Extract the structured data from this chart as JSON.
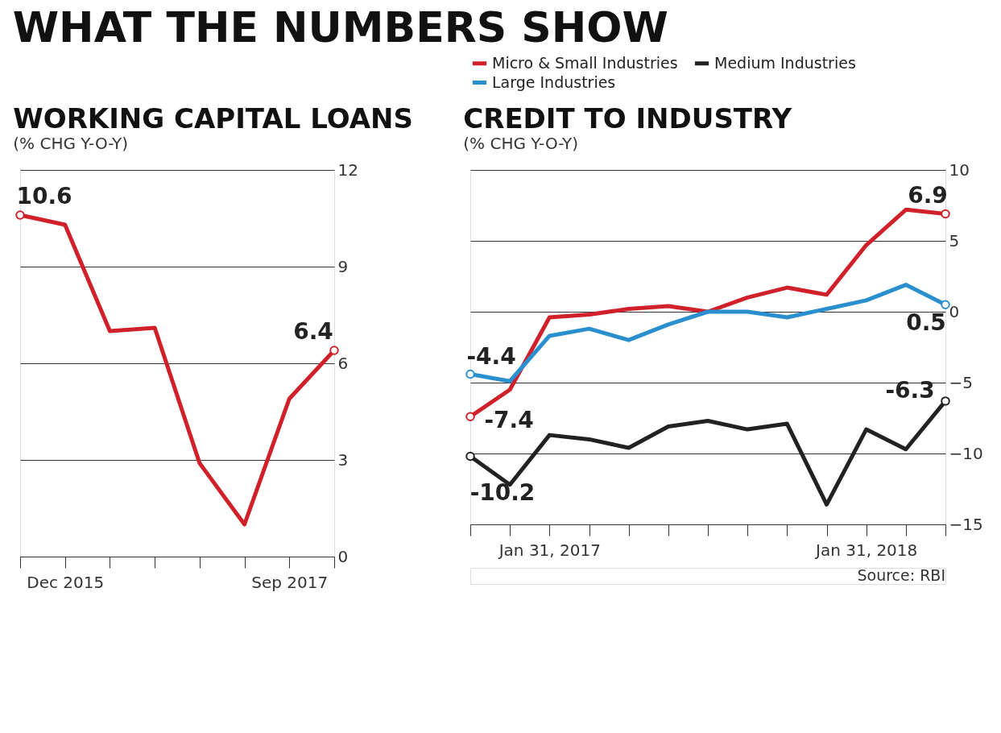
{
  "chart_data": [
    {
      "type": "line",
      "title": "WORKING CAPITAL LOANS",
      "subtitle": "(% CHG Y-O-Y)",
      "annotations": [
        "WHAT THE NUMBERS SHOW"
      ],
      "categories": [
        null,
        "Dec 2015",
        null,
        null,
        null,
        null,
        "Sep 2017",
        null
      ],
      "series": [
        {
          "color": "#d0202a",
          "values": [
            10.6,
            10.3,
            7.0,
            7.1,
            2.9,
            1.0,
            4.9,
            6.4
          ],
          "value_labels": [
            "10.6",
            null,
            null,
            null,
            null,
            null,
            null,
            "6.4"
          ]
        }
      ],
      "ylim": [
        0,
        12
      ],
      "yticks": [
        0,
        3,
        6,
        9,
        12
      ],
      "grid": "y"
    },
    {
      "type": "line",
      "title": "CREDIT TO INDUSTRY",
      "subtitle": "(% CHG Y-O-Y)",
      "annotations": [
        "Source: RBI"
      ],
      "categories": [
        null,
        null,
        "Jan 31, 2017",
        null,
        null,
        null,
        null,
        null,
        null,
        null,
        "Jan 31, 2018",
        null,
        null
      ],
      "series": [
        {
          "name": "Micro & Small Industries",
          "color": "#d0202a",
          "values": [
            -7.4,
            -5.5,
            -0.4,
            -0.2,
            0.2,
            0.4,
            0.0,
            1.0,
            1.7,
            1.2,
            4.7,
            7.2,
            6.9
          ],
          "value_labels": [
            "-7.4",
            null,
            null,
            null,
            null,
            null,
            null,
            null,
            null,
            null,
            null,
            null,
            "6.9"
          ]
        },
        {
          "name": "Medium Industries",
          "color": "#222222",
          "values": [
            -10.2,
            -12.2,
            -8.7,
            -9.0,
            -9.6,
            -8.1,
            -7.7,
            -8.3,
            -7.9,
            -13.6,
            -8.3,
            -9.7,
            -6.3
          ],
          "value_labels": [
            "-10.2",
            null,
            null,
            null,
            null,
            null,
            null,
            null,
            null,
            null,
            null,
            null,
            "-6.3"
          ]
        },
        {
          "name": "Large Industries",
          "color": "#2a8fcf",
          "values": [
            -4.4,
            -4.9,
            -1.7,
            -1.2,
            -2.0,
            -0.9,
            0.0,
            0.0,
            -0.4,
            0.2,
            0.8,
            1.9,
            0.5
          ],
          "value_labels": [
            "-4.4",
            null,
            null,
            null,
            null,
            null,
            null,
            null,
            null,
            null,
            null,
            null,
            "0.5"
          ]
        }
      ],
      "ylim": [
        -15,
        10
      ],
      "yticks": [
        -15,
        -10,
        -5,
        0,
        5,
        10
      ],
      "grid": "y",
      "legend": "top"
    }
  ]
}
